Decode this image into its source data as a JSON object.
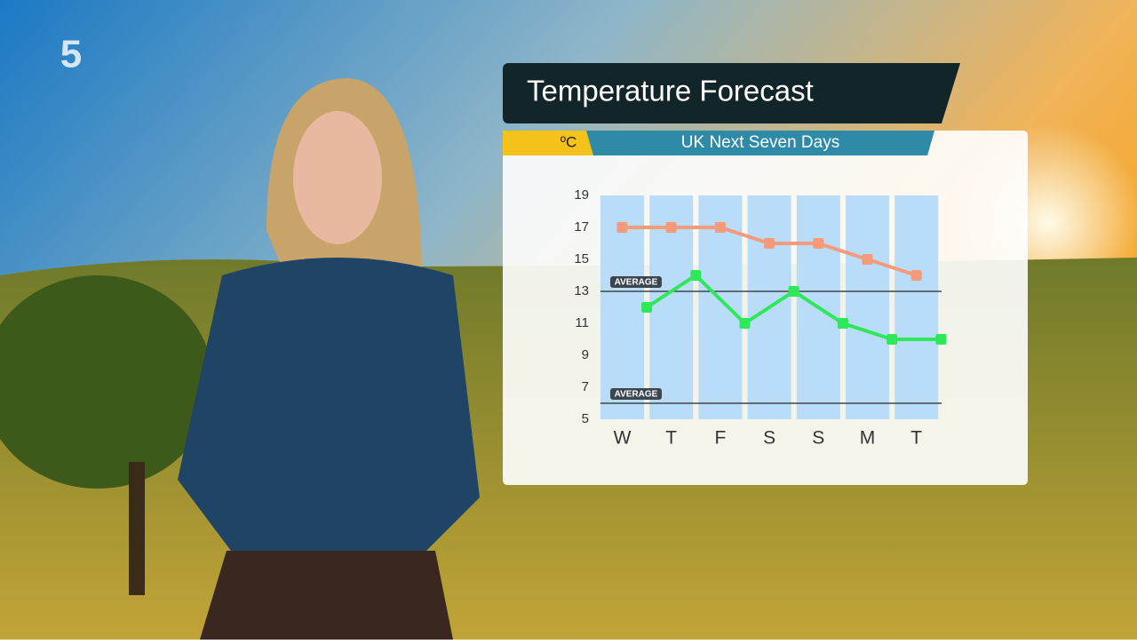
{
  "channel": "5",
  "chart_data": {
    "type": "line",
    "title": "Temperature Forecast",
    "subtitle": "UK Next Seven Days",
    "unit_label": "ºC",
    "categories": [
      "W",
      "T",
      "F",
      "S",
      "S",
      "M",
      "T"
    ],
    "series": [
      {
        "color": "#f59a7a",
        "values": [
          17,
          17,
          17,
          16,
          16,
          15,
          14
        ]
      },
      {
        "color": "#2ee85a",
        "values": [
          12,
          14,
          11,
          13,
          11,
          10,
          10
        ]
      }
    ],
    "ylim": [
      5,
      19
    ],
    "yticks": [
      5,
      7,
      9,
      11,
      13,
      15,
      17,
      19
    ],
    "annotations": [
      {
        "label": "AVERAGE",
        "value": 13
      },
      {
        "label": "AVERAGE",
        "value": 6
      }
    ]
  }
}
